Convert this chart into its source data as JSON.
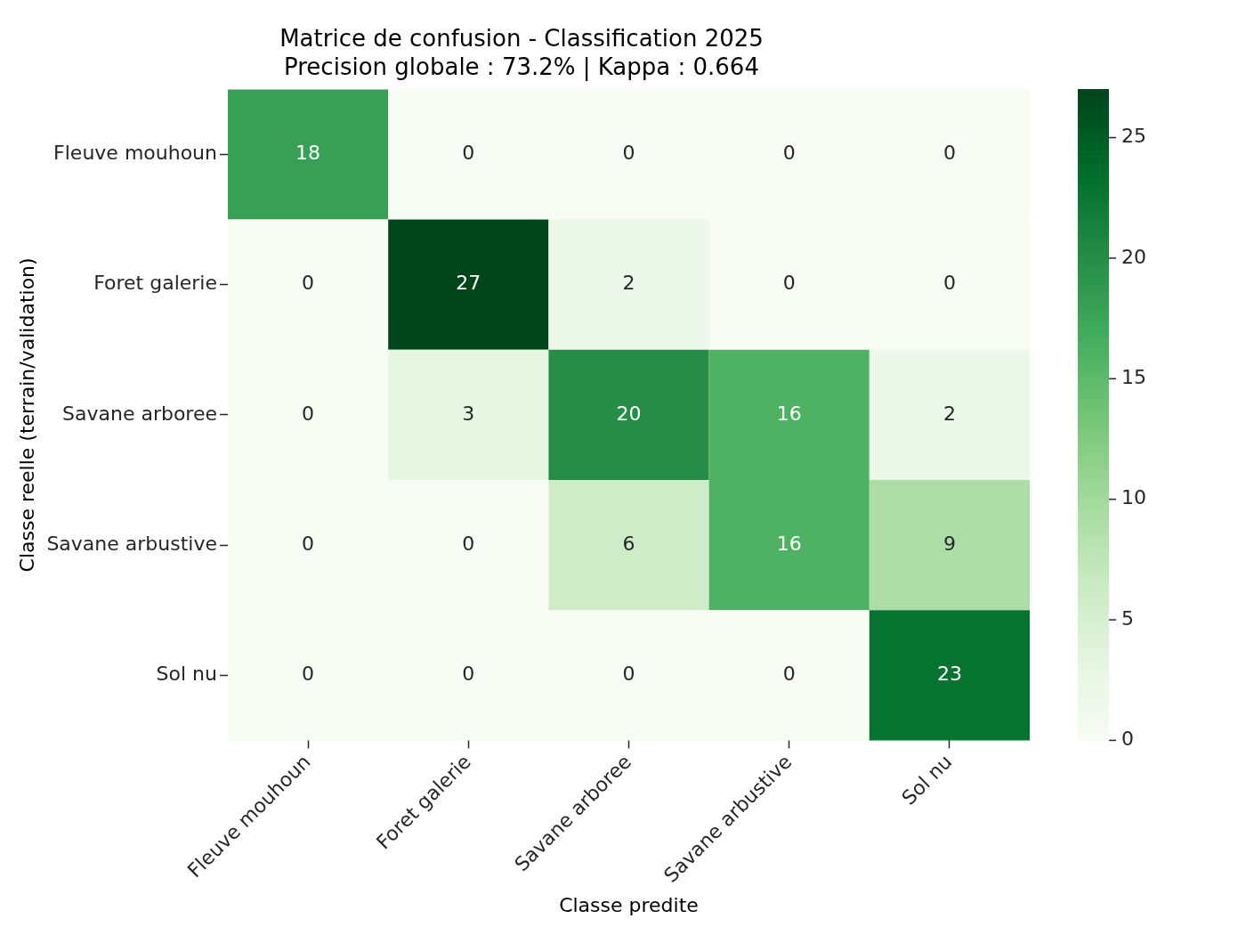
{
  "chart_data": {
    "type": "heatmap",
    "title": "Matrice de confusion - Classification 2025",
    "subtitle": "Precision globale : 73.2% | Kappa : 0.664",
    "xlabel": "Classe predite",
    "ylabel": "Classe reelle (terrain/validation)",
    "categories": [
      "Fleuve mouhoun",
      "Foret galerie",
      "Savane arboree",
      "Savane arbustive",
      "Sol nu"
    ],
    "y_categories": [
      "Fleuve mouhoun",
      "Foret galerie",
      "Savane arboree",
      "Savane arbustive",
      "Sol nu"
    ],
    "cells": [
      [
        18,
        0,
        0,
        0,
        0
      ],
      [
        0,
        27,
        2,
        0,
        0
      ],
      [
        0,
        3,
        20,
        16,
        2
      ],
      [
        0,
        0,
        6,
        16,
        9
      ],
      [
        0,
        0,
        0,
        0,
        23
      ]
    ],
    "clim": [
      0,
      27
    ],
    "cticks": [
      0,
      5,
      10,
      15,
      20,
      25
    ],
    "data_labels": true,
    "grid": false,
    "legend": false
  }
}
